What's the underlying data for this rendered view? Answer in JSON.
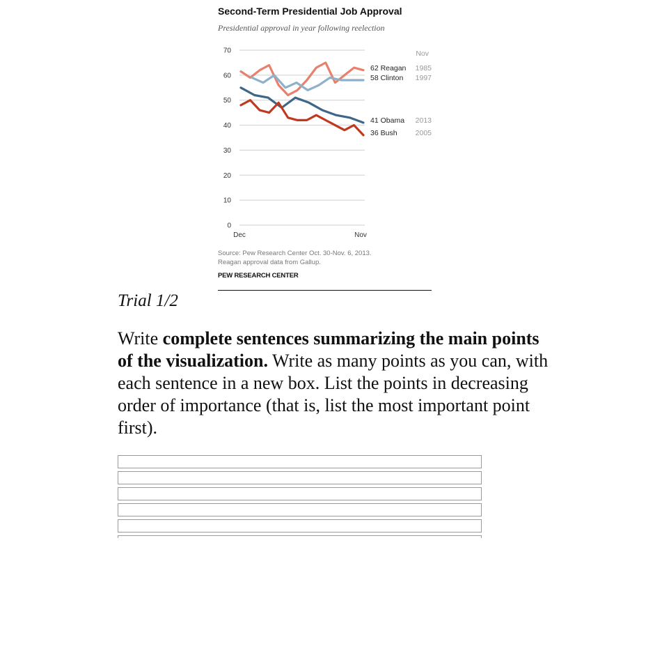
{
  "chart_data": {
    "type": "line",
    "title": "Second-Term Presidential Job Approval",
    "subtitle": "Presidential approval in year following reelection",
    "x_start_label": "Dec",
    "x_end_label": "Nov",
    "y_ticks": [
      0,
      10,
      20,
      30,
      40,
      50,
      60,
      70
    ],
    "ylim": [
      0,
      70
    ],
    "grid": true,
    "legend": "none (series labeled at line ends)",
    "end_header": "Nov",
    "series": [
      {
        "name": "Reagan",
        "end_value": "62",
        "year": "1985",
        "color": "#e8806e",
        "values": [
          61.5,
          59,
          62,
          64,
          56,
          52,
          54,
          58,
          63,
          65,
          57,
          60,
          63,
          62
        ]
      },
      {
        "name": "Clinton",
        "end_value": "58",
        "year": "1997",
        "color": "#8eb0cb",
        "values": [
          null,
          59,
          57,
          60,
          55,
          57,
          54,
          56,
          59,
          58,
          58,
          58
        ]
      },
      {
        "name": "Obama",
        "end_value": "41",
        "year": "2013",
        "color": "#3d6688",
        "values": [
          55,
          52,
          51,
          47,
          51,
          49,
          46,
          44,
          43,
          41
        ]
      },
      {
        "name": "Bush",
        "end_value": "36",
        "year": "2005",
        "color": "#c0391f",
        "values": [
          48,
          50,
          46,
          45,
          49,
          43,
          42,
          42,
          44,
          42,
          40,
          38,
          40,
          36
        ]
      }
    ],
    "source": [
      "Source: Pew Research Center Oct. 30-Nov. 6, 2013.",
      "Reagan approval data from Gallup."
    ],
    "brand": "PEW RESEARCH CENTER"
  },
  "trial_label": "Trial 1/2",
  "instructions": {
    "bold_part": "complete sentences summarizing the main points of the visualization.",
    "lead": "Write ",
    "rest": " Write as many points as you can, with each sentence in a new box. List the points in decreasing order of importance (that is, list the most important point first)."
  },
  "answer_boxes": [
    "",
    "",
    "",
    "",
    "",
    ""
  ]
}
